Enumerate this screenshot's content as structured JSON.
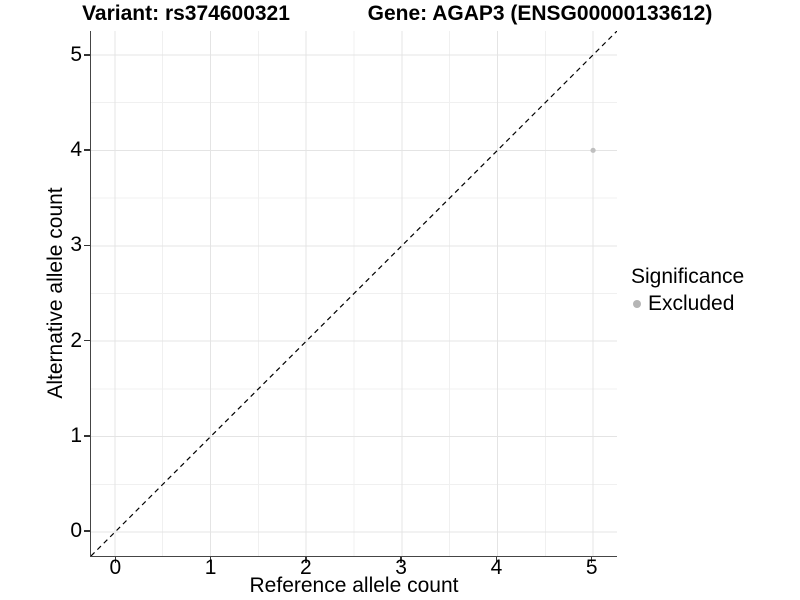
{
  "figure": {
    "title_left": "Variant: rs374600321",
    "title_right": "Gene: AGAP3 (ENSG00000133612)"
  },
  "chart_data": {
    "type": "scatter",
    "title": "Variant: rs374600321   Gene: AGAP3 (ENSG00000133612)",
    "xlabel": "Reference allele count",
    "ylabel": "Alternative allele count",
    "xlim": [
      -0.25,
      5.25
    ],
    "ylim": [
      -0.25,
      5.25
    ],
    "x_ticks": [
      0,
      1,
      2,
      3,
      4,
      5
    ],
    "y_ticks": [
      0,
      1,
      2,
      3,
      4,
      5
    ],
    "x_minor_ticks": [
      0.5,
      1.5,
      2.5,
      3.5,
      4.5
    ],
    "y_minor_ticks": [
      0.5,
      1.5,
      2.5,
      3.5,
      4.5
    ],
    "grid": "major and minor, light gray on white",
    "series": [
      {
        "name": "Excluded",
        "marker": "circle",
        "color": "#bfbfbf",
        "points": [
          {
            "x": 5,
            "y": 4
          }
        ]
      }
    ],
    "identity_line": {
      "equation": "y = x",
      "style": "dashed",
      "color": "#000000"
    },
    "legend": {
      "title": "Significance",
      "position": "right",
      "items": [
        {
          "label": "Excluded",
          "color": "#b5b5b5",
          "marker": "circle"
        }
      ]
    }
  },
  "colors": {
    "background": "#ffffff",
    "grid_major": "#e4e4e4",
    "grid_minor": "#f0f0f0",
    "axis_line": "#454545",
    "tick_mark": "#333333",
    "text": "#000000",
    "point": "#bfbfbf",
    "identity_line": "#000000"
  }
}
